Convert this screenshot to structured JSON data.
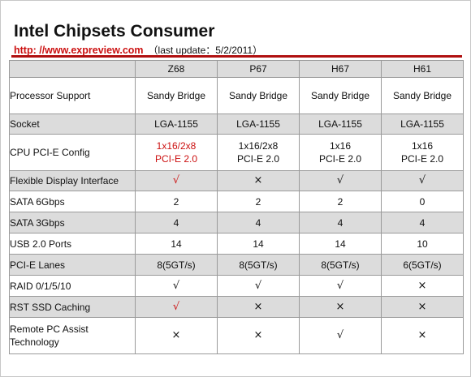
{
  "header": {
    "title": "Intel Chipsets Consumer",
    "url": "http: //www.expreview.com",
    "update": "（last update：5/2/2011）"
  },
  "colors": {
    "accent": "#cc1111",
    "rule": "#b01010",
    "shade": "#dcdcdc"
  },
  "table": {
    "columns": [
      "Z68",
      "P67",
      "H67",
      "H61"
    ],
    "rows": [
      {
        "label": "Processor Support",
        "values": [
          "Sandy Bridge",
          "Sandy Bridge",
          "Sandy Bridge",
          "Sandy Bridge"
        ]
      },
      {
        "label": "Socket",
        "values": [
          "LGA-1155",
          "LGA-1155",
          "LGA-1155",
          "LGA-1155"
        ]
      },
      {
        "label": "CPU PCI-E Config",
        "values": [
          {
            "line1": "1x16/2x8",
            "line2": "PCI-E 2.0"
          },
          {
            "line1": "1x16/2x8",
            "line2": "PCI-E 2.0"
          },
          {
            "line1": "1x16",
            "line2": "PCI-E 2.0"
          },
          {
            "line1": "1x16",
            "line2": "PCI-E 2.0"
          }
        ]
      },
      {
        "label": "Flexible Display Interface",
        "values": [
          "√",
          "×",
          "√",
          "√"
        ]
      },
      {
        "label": "SATA 6Gbps",
        "values": [
          "2",
          "2",
          "2",
          "0"
        ]
      },
      {
        "label": "SATA 3Gbps",
        "values": [
          "4",
          "4",
          "4",
          "4"
        ]
      },
      {
        "label": "USB 2.0 Ports",
        "values": [
          "14",
          "14",
          "14",
          "10"
        ]
      },
      {
        "label": "PCI-E Lanes",
        "values": [
          "8(5GT/s)",
          "8(5GT/s)",
          "8(5GT/s)",
          "6(5GT/s)"
        ]
      },
      {
        "label": "RAID 0/1/5/10",
        "values": [
          "√",
          "√",
          "√",
          "×"
        ]
      },
      {
        "label": "RST SSD Caching",
        "values": [
          "√",
          "×",
          "×",
          "×"
        ]
      },
      {
        "label": "Remote PC Assist Technology",
        "values": [
          "×",
          "×",
          "√",
          "×"
        ]
      }
    ]
  }
}
